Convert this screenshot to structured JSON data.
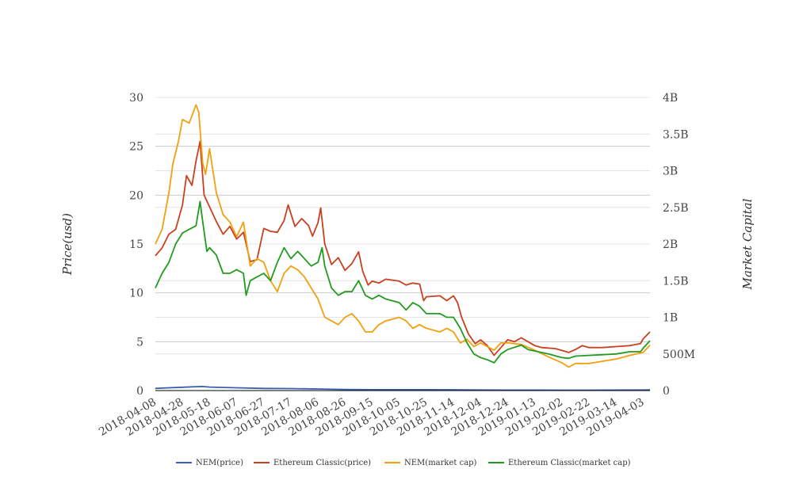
{
  "chart_data": {
    "type": "line",
    "title": "",
    "ylabel_left": "Price(usd)",
    "ylabel_right": "Market Capital",
    "xlabel": "",
    "x_tick_labels": [
      "2018-04-08",
      "2018-04-28",
      "2018-05-18",
      "2018-06-07",
      "2018-06-27",
      "2018-07-17",
      "2018-08-06",
      "2018-08-26",
      "2018-09-15",
      "2018-10-05",
      "2018-10-25",
      "2018-11-14",
      "2018-12-04",
      "2018-12-24",
      "2019-01-13",
      "2019-02-02",
      "2019-02-22",
      "2019-03-14",
      "2019-04-03"
    ],
    "y_left": {
      "range": [
        0,
        30
      ],
      "ticks": [
        0,
        5,
        10,
        15,
        20,
        25,
        30
      ],
      "tick_labels": [
        "0",
        "5",
        "10",
        "15",
        "20",
        "25",
        "30"
      ]
    },
    "y_right": {
      "range": [
        0,
        4000000000
      ],
      "ticks": [
        0,
        500000000,
        1000000000,
        1500000000,
        2000000000,
        2500000000,
        3000000000,
        3500000000,
        4000000000
      ],
      "tick_labels": [
        "0",
        "500M",
        "1B",
        "1.5B",
        "2B",
        "2.5B",
        "3B",
        "3.5B",
        "4B"
      ]
    },
    "x_range": [
      "2018-04-08",
      "2019-04-08"
    ],
    "grid": true,
    "legend_position": "bottom",
    "series": [
      {
        "name": "NEM(price)",
        "axis": "left",
        "color": "#3a5fb0",
        "points": [
          [
            "2018-04-08",
            0.22
          ],
          [
            "2018-04-18",
            0.28
          ],
          [
            "2018-04-28",
            0.34
          ],
          [
            "2018-05-08",
            0.4
          ],
          [
            "2018-05-13",
            0.41
          ],
          [
            "2018-05-18",
            0.36
          ],
          [
            "2018-06-07",
            0.28
          ],
          [
            "2018-06-27",
            0.22
          ],
          [
            "2018-07-17",
            0.2
          ],
          [
            "2018-08-06",
            0.16
          ],
          [
            "2018-08-26",
            0.11
          ],
          [
            "2018-09-15",
            0.09
          ],
          [
            "2018-10-05",
            0.09
          ],
          [
            "2018-10-25",
            0.09
          ],
          [
            "2018-11-14",
            0.08
          ],
          [
            "2018-12-04",
            0.06
          ],
          [
            "2018-12-24",
            0.05
          ],
          [
            "2019-01-13",
            0.05
          ],
          [
            "2019-02-02",
            0.04
          ],
          [
            "2019-02-22",
            0.04
          ],
          [
            "2019-03-14",
            0.05
          ],
          [
            "2019-04-03",
            0.06
          ],
          [
            "2019-04-08",
            0.07
          ]
        ]
      },
      {
        "name": "Ethereum Classic(price)",
        "axis": "left",
        "color": "#c8401f",
        "points": [
          [
            "2018-04-08",
            13.8
          ],
          [
            "2018-04-13",
            14.6
          ],
          [
            "2018-04-18",
            16.0
          ],
          [
            "2018-04-23",
            16.5
          ],
          [
            "2018-04-28",
            19.0
          ],
          [
            "2018-05-01",
            22.0
          ],
          [
            "2018-05-05",
            21.0
          ],
          [
            "2018-05-08",
            23.5
          ],
          [
            "2018-05-11",
            25.5
          ],
          [
            "2018-05-14",
            20.0
          ],
          [
            "2018-05-18",
            18.8
          ],
          [
            "2018-05-23",
            17.3
          ],
          [
            "2018-05-28",
            16.0
          ],
          [
            "2018-06-02",
            16.8
          ],
          [
            "2018-06-07",
            15.5
          ],
          [
            "2018-06-12",
            16.2
          ],
          [
            "2018-06-17",
            13.2
          ],
          [
            "2018-06-22",
            13.4
          ],
          [
            "2018-06-27",
            16.6
          ],
          [
            "2018-07-02",
            16.3
          ],
          [
            "2018-07-07",
            16.2
          ],
          [
            "2018-07-12",
            17.4
          ],
          [
            "2018-07-15",
            19.0
          ],
          [
            "2018-07-20",
            16.8
          ],
          [
            "2018-07-25",
            17.6
          ],
          [
            "2018-07-30",
            16.9
          ],
          [
            "2018-08-02",
            15.8
          ],
          [
            "2018-08-06",
            17.2
          ],
          [
            "2018-08-08",
            18.7
          ],
          [
            "2018-08-11",
            15.0
          ],
          [
            "2018-08-16",
            12.9
          ],
          [
            "2018-08-21",
            13.6
          ],
          [
            "2018-08-26",
            12.3
          ],
          [
            "2018-08-31",
            13.0
          ],
          [
            "2018-09-05",
            14.2
          ],
          [
            "2018-09-08",
            12.2
          ],
          [
            "2018-09-12",
            10.8
          ],
          [
            "2018-09-15",
            11.2
          ],
          [
            "2018-09-20",
            11.0
          ],
          [
            "2018-09-25",
            11.4
          ],
          [
            "2018-10-05",
            11.2
          ],
          [
            "2018-10-10",
            10.8
          ],
          [
            "2018-10-15",
            11.0
          ],
          [
            "2018-10-20",
            10.9
          ],
          [
            "2018-10-23",
            9.2
          ],
          [
            "2018-10-25",
            9.6
          ],
          [
            "2018-11-04",
            9.7
          ],
          [
            "2018-11-09",
            9.2
          ],
          [
            "2018-11-14",
            9.7
          ],
          [
            "2018-11-17",
            9.0
          ],
          [
            "2018-11-20",
            7.5
          ],
          [
            "2018-11-25",
            5.8
          ],
          [
            "2018-11-30",
            4.8
          ],
          [
            "2018-12-04",
            5.2
          ],
          [
            "2018-12-09",
            4.6
          ],
          [
            "2018-12-14",
            3.6
          ],
          [
            "2018-12-19",
            4.4
          ],
          [
            "2018-12-24",
            5.2
          ],
          [
            "2018-12-29",
            5.0
          ],
          [
            "2019-01-03",
            5.4
          ],
          [
            "2019-01-08",
            5.0
          ],
          [
            "2019-01-13",
            4.6
          ],
          [
            "2019-01-18",
            4.4
          ],
          [
            "2019-01-28",
            4.3
          ],
          [
            "2019-02-02",
            4.1
          ],
          [
            "2019-02-07",
            3.9
          ],
          [
            "2019-02-12",
            4.2
          ],
          [
            "2019-02-17",
            4.6
          ],
          [
            "2019-02-22",
            4.4
          ],
          [
            "2019-03-04",
            4.4
          ],
          [
            "2019-03-14",
            4.5
          ],
          [
            "2019-03-24",
            4.6
          ],
          [
            "2019-04-01",
            4.8
          ],
          [
            "2019-04-03",
            5.3
          ],
          [
            "2019-04-08",
            6.0
          ]
        ]
      },
      {
        "name": "NEM(market cap)",
        "axis": "right",
        "color": "#f0a10f",
        "points": [
          [
            "2018-04-08",
            2000000000
          ],
          [
            "2018-04-13",
            2200000000
          ],
          [
            "2018-04-18",
            2700000000
          ],
          [
            "2018-04-21",
            3100000000
          ],
          [
            "2018-04-25",
            3400000000
          ],
          [
            "2018-04-28",
            3700000000
          ],
          [
            "2018-05-03",
            3650000000
          ],
          [
            "2018-05-08",
            3900000000
          ],
          [
            "2018-05-10",
            3800000000
          ],
          [
            "2018-05-13",
            3100000000
          ],
          [
            "2018-05-15",
            2950000000
          ],
          [
            "2018-05-18",
            3300000000
          ],
          [
            "2018-05-23",
            2700000000
          ],
          [
            "2018-05-28",
            2400000000
          ],
          [
            "2018-06-02",
            2300000000
          ],
          [
            "2018-06-07",
            2100000000
          ],
          [
            "2018-06-12",
            2300000000
          ],
          [
            "2018-06-17",
            1700000000
          ],
          [
            "2018-06-22",
            1800000000
          ],
          [
            "2018-06-27",
            1750000000
          ],
          [
            "2018-07-02",
            1500000000
          ],
          [
            "2018-07-07",
            1350000000
          ],
          [
            "2018-07-12",
            1600000000
          ],
          [
            "2018-07-17",
            1700000000
          ],
          [
            "2018-07-22",
            1650000000
          ],
          [
            "2018-07-27",
            1550000000
          ],
          [
            "2018-08-01",
            1400000000
          ],
          [
            "2018-08-06",
            1250000000
          ],
          [
            "2018-08-11",
            1000000000
          ],
          [
            "2018-08-16",
            950000000
          ],
          [
            "2018-08-21",
            900000000
          ],
          [
            "2018-08-26",
            1000000000
          ],
          [
            "2018-08-31",
            1050000000
          ],
          [
            "2018-09-05",
            950000000
          ],
          [
            "2018-09-10",
            800000000
          ],
          [
            "2018-09-15",
            800000000
          ],
          [
            "2018-09-20",
            900000000
          ],
          [
            "2018-09-25",
            950000000
          ],
          [
            "2018-10-05",
            1000000000
          ],
          [
            "2018-10-10",
            950000000
          ],
          [
            "2018-10-15",
            850000000
          ],
          [
            "2018-10-20",
            900000000
          ],
          [
            "2018-10-25",
            850000000
          ],
          [
            "2018-11-04",
            800000000
          ],
          [
            "2018-11-09",
            850000000
          ],
          [
            "2018-11-14",
            800000000
          ],
          [
            "2018-11-19",
            650000000
          ],
          [
            "2018-11-24",
            700000000
          ],
          [
            "2018-11-29",
            600000000
          ],
          [
            "2018-12-04",
            650000000
          ],
          [
            "2018-12-09",
            600000000
          ],
          [
            "2018-12-14",
            550000000
          ],
          [
            "2018-12-19",
            650000000
          ],
          [
            "2018-12-24",
            650000000
          ],
          [
            "2019-01-03",
            630000000
          ],
          [
            "2019-01-13",
            550000000
          ],
          [
            "2019-01-23",
            460000000
          ],
          [
            "2019-02-02",
            380000000
          ],
          [
            "2019-02-07",
            320000000
          ],
          [
            "2019-02-12",
            370000000
          ],
          [
            "2019-02-22",
            370000000
          ],
          [
            "2019-03-04",
            400000000
          ],
          [
            "2019-03-14",
            430000000
          ],
          [
            "2019-03-24",
            480000000
          ],
          [
            "2019-04-03",
            520000000
          ],
          [
            "2019-04-08",
            620000000
          ]
        ]
      },
      {
        "name": "Ethereum Classic(market cap)",
        "axis": "right",
        "color": "#239b1f",
        "points": [
          [
            "2018-04-08",
            1400000000
          ],
          [
            "2018-04-13",
            1600000000
          ],
          [
            "2018-04-18",
            1750000000
          ],
          [
            "2018-04-23",
            2000000000
          ],
          [
            "2018-04-28",
            2150000000
          ],
          [
            "2018-05-03",
            2200000000
          ],
          [
            "2018-05-08",
            2250000000
          ],
          [
            "2018-05-11",
            2580000000
          ],
          [
            "2018-05-13",
            2300000000
          ],
          [
            "2018-05-16",
            1900000000
          ],
          [
            "2018-05-18",
            1950000000
          ],
          [
            "2018-05-23",
            1850000000
          ],
          [
            "2018-05-28",
            1600000000
          ],
          [
            "2018-06-02",
            1600000000
          ],
          [
            "2018-06-07",
            1650000000
          ],
          [
            "2018-06-12",
            1600000000
          ],
          [
            "2018-06-14",
            1300000000
          ],
          [
            "2018-06-17",
            1500000000
          ],
          [
            "2018-06-22",
            1550000000
          ],
          [
            "2018-06-27",
            1600000000
          ],
          [
            "2018-07-02",
            1500000000
          ],
          [
            "2018-07-07",
            1750000000
          ],
          [
            "2018-07-12",
            1950000000
          ],
          [
            "2018-07-17",
            1800000000
          ],
          [
            "2018-07-22",
            1900000000
          ],
          [
            "2018-07-27",
            1800000000
          ],
          [
            "2018-08-01",
            1700000000
          ],
          [
            "2018-08-06",
            1750000000
          ],
          [
            "2018-08-09",
            1950000000
          ],
          [
            "2018-08-11",
            1700000000
          ],
          [
            "2018-08-16",
            1400000000
          ],
          [
            "2018-08-21",
            1300000000
          ],
          [
            "2018-08-26",
            1350000000
          ],
          [
            "2018-08-31",
            1350000000
          ],
          [
            "2018-09-05",
            1500000000
          ],
          [
            "2018-09-10",
            1300000000
          ],
          [
            "2018-09-15",
            1250000000
          ],
          [
            "2018-09-20",
            1300000000
          ],
          [
            "2018-09-25",
            1250000000
          ],
          [
            "2018-10-05",
            1200000000
          ],
          [
            "2018-10-10",
            1100000000
          ],
          [
            "2018-10-15",
            1200000000
          ],
          [
            "2018-10-20",
            1150000000
          ],
          [
            "2018-10-25",
            1050000000
          ],
          [
            "2018-11-04",
            1050000000
          ],
          [
            "2018-11-09",
            1000000000
          ],
          [
            "2018-11-14",
            1000000000
          ],
          [
            "2018-11-19",
            850000000
          ],
          [
            "2018-11-24",
            650000000
          ],
          [
            "2018-11-29",
            500000000
          ],
          [
            "2018-12-04",
            450000000
          ],
          [
            "2018-12-09",
            420000000
          ],
          [
            "2018-12-14",
            380000000
          ],
          [
            "2018-12-19",
            500000000
          ],
          [
            "2018-12-24",
            560000000
          ],
          [
            "2019-01-03",
            620000000
          ],
          [
            "2019-01-08",
            560000000
          ],
          [
            "2019-01-13",
            540000000
          ],
          [
            "2019-01-23",
            500000000
          ],
          [
            "2019-02-02",
            450000000
          ],
          [
            "2019-02-07",
            440000000
          ],
          [
            "2019-02-12",
            470000000
          ],
          [
            "2019-02-22",
            480000000
          ],
          [
            "2019-03-04",
            490000000
          ],
          [
            "2019-03-14",
            500000000
          ],
          [
            "2019-03-24",
            530000000
          ],
          [
            "2019-04-01",
            530000000
          ],
          [
            "2019-04-03",
            580000000
          ],
          [
            "2019-04-08",
            680000000
          ]
        ]
      }
    ]
  }
}
